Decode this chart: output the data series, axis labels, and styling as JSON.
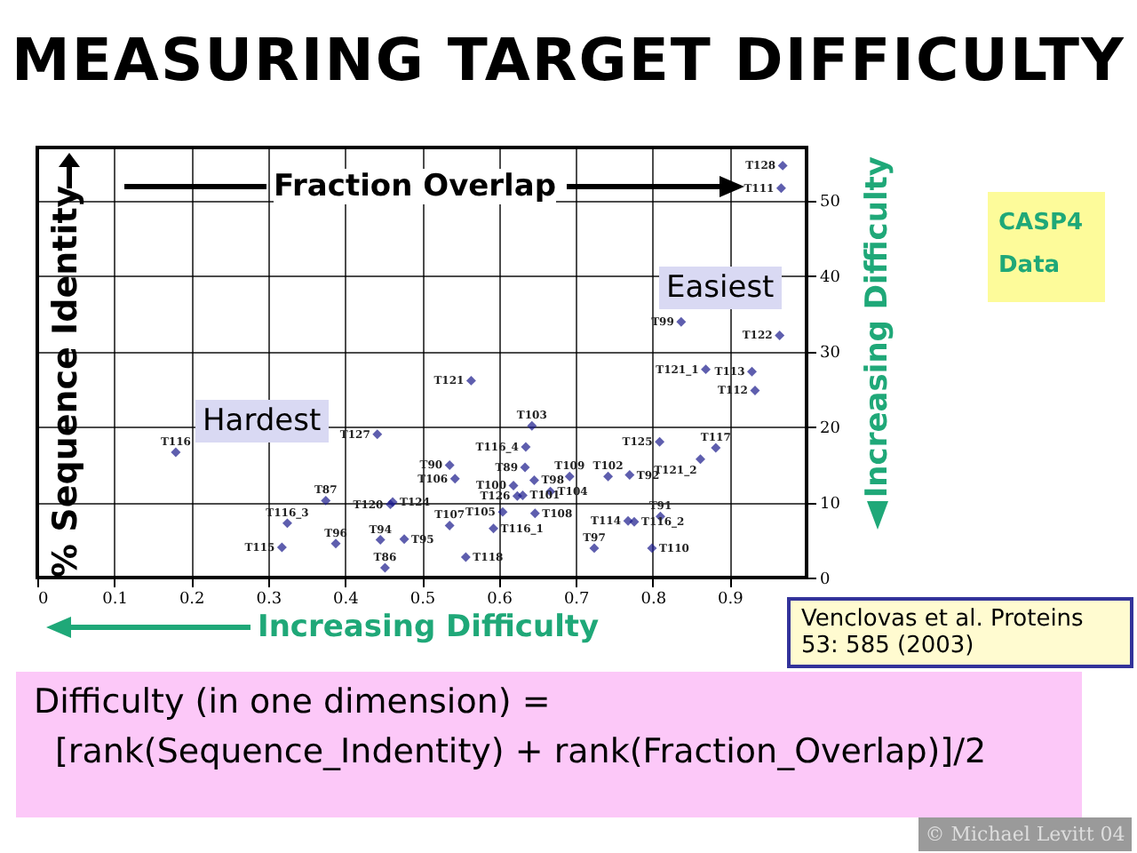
{
  "chart_data": {
    "type": "scatter",
    "title": "MEASURING TARGET DIFFICULTY",
    "xlabel": "Fraction Overlap",
    "ylabel": "% Sequence Identity",
    "x": [
      0.18,
      0.442,
      0.375,
      0.325,
      0.318,
      0.388,
      0.459,
      0.462,
      0.446,
      0.477,
      0.452,
      0.969,
      0.967,
      0.837,
      0.965,
      0.869,
      0.929,
      0.933,
      0.564,
      0.643,
      0.809,
      0.882,
      0.862,
      0.635,
      0.536,
      0.543,
      0.634,
      0.692,
      0.742,
      0.77,
      0.646,
      0.619,
      0.667,
      0.624,
      0.631,
      0.605,
      0.647,
      0.536,
      0.593,
      0.557,
      0.724,
      0.799,
      0.768,
      0.776,
      0.81
    ],
    "values": [
      16.6,
      19.0,
      10.2,
      7.2,
      4.0,
      4.5,
      9.7,
      10.0,
      5.0,
      5.1,
      1.3,
      54.6,
      51.6,
      33.9,
      32.1,
      27.6,
      27.3,
      24.8,
      26.1,
      20.1,
      18.0,
      17.2,
      15.7,
      17.3,
      14.9,
      13.1,
      14.6,
      13.4,
      13.4,
      13.6,
      12.9,
      12.2,
      11.4,
      10.8,
      10.9,
      8.7,
      8.5,
      6.9,
      6.5,
      2.7,
      3.9,
      3.9,
      7.5,
      7.4,
      8.1
    ],
    "value_labels": [
      "T116",
      "T127",
      "T87",
      "T116_3",
      "T115",
      "T96",
      "T120",
      "T124",
      "T94",
      "T95",
      "T86",
      "T128",
      "T111",
      "T99",
      "T122",
      "T121_1",
      "T113",
      "T112",
      "T121",
      "T103",
      "T125",
      "T117",
      "T121_2",
      "T116_4",
      "T90",
      "T106",
      "T89",
      "T109",
      "T102",
      "T92",
      "T98",
      "T100",
      "T104",
      "T126",
      "T101",
      "T105",
      "T108",
      "T107",
      "T116_1",
      "T118",
      "T97",
      "T110",
      "T114",
      "T116_2",
      "T91"
    ],
    "color": "#1a1a8c",
    "marker": "diamond",
    "grid": true,
    "xlim": [
      0,
      1
    ],
    "xticks": [
      {
        "value": 0,
        "label": "0"
      },
      0.1,
      0.2,
      0.3,
      0.4,
      0.5,
      0.6,
      0.7,
      0.8,
      0.9
    ],
    "ylim": [
      0,
      57
    ],
    "yticks": [
      0,
      10,
      20,
      30,
      40,
      50
    ],
    "annotations": [
      "Hardest",
      "Easiest",
      "Increasing Difficulty",
      "Increasing Difficulty",
      "CASP4 Data",
      "Venclovas et al. Proteins 53: 585 (2003)",
      "Difficulty (in one dimension) =",
      "[rank(Sequence_Indentity) + rank(Fraction_Overlap)]/2",
      "© Michael Levitt 04"
    ]
  }
}
